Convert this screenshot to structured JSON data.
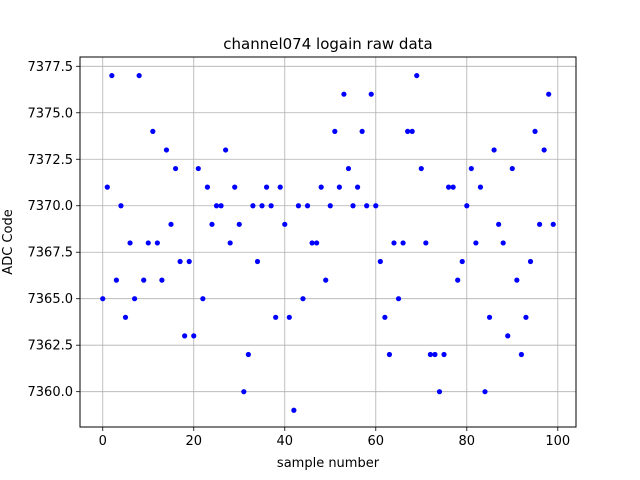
{
  "chart_data": {
    "type": "scatter",
    "title": "channel074 logain raw data",
    "xlabel": "sample number",
    "ylabel": "ADC Code",
    "xlim": [
      -5,
      104
    ],
    "ylim": [
      7358.1,
      7378.0
    ],
    "xticks": [
      0,
      20,
      40,
      60,
      80,
      100
    ],
    "yticks": [
      7360.0,
      7362.5,
      7365.0,
      7367.5,
      7370.0,
      7372.5,
      7375.0,
      7377.5
    ],
    "xtick_labels": [
      "0",
      "20",
      "40",
      "60",
      "80",
      "100"
    ],
    "ytick_labels": [
      "7360.0",
      "7362.5",
      "7365.0",
      "7367.5",
      "7370.0",
      "7372.5",
      "7375.0",
      "7377.5"
    ],
    "grid": true,
    "marker_color": "#0000ff",
    "x": [
      0,
      1,
      2,
      3,
      4,
      5,
      6,
      7,
      8,
      9,
      10,
      11,
      12,
      13,
      14,
      15,
      16,
      17,
      18,
      19,
      20,
      21,
      22,
      23,
      24,
      25,
      26,
      27,
      28,
      29,
      30,
      31,
      32,
      33,
      34,
      35,
      36,
      37,
      38,
      39,
      40,
      41,
      42,
      43,
      44,
      45,
      46,
      47,
      48,
      49,
      50,
      51,
      52,
      53,
      54,
      55,
      56,
      57,
      58,
      59,
      60,
      61,
      62,
      63,
      64,
      65,
      66,
      67,
      68,
      69,
      70,
      71,
      72,
      73,
      74,
      75,
      76,
      77,
      78,
      79,
      80,
      81,
      82,
      83,
      84,
      85,
      86,
      87,
      88,
      89,
      90,
      91,
      92,
      93,
      94,
      95,
      96,
      97,
      98,
      99
    ],
    "y": [
      7365,
      7371,
      7377,
      7366,
      7370,
      7364,
      7368,
      7365,
      7377,
      7366,
      7368,
      7374,
      7368,
      7366,
      7373,
      7369,
      7372,
      7367,
      7363,
      7367,
      7363,
      7372,
      7365,
      7371,
      7369,
      7370,
      7370,
      7373,
      7368,
      7371,
      7369,
      7360,
      7362,
      7370,
      7367,
      7370,
      7371,
      7370,
      7364,
      7371,
      7369,
      7364,
      7359,
      7370,
      7365,
      7370,
      7368,
      7368,
      7371,
      7366,
      7370,
      7374,
      7371,
      7376,
      7372,
      7370,
      7371,
      7374,
      7370,
      7376,
      7370,
      7367,
      7364,
      7362,
      7368,
      7365,
      7368,
      7374,
      7374,
      7377,
      7372,
      7368,
      7362,
      7362,
      7360,
      7362,
      7371,
      7371,
      7366,
      7367,
      7370,
      7372,
      7368,
      7371,
      7360,
      7364,
      7373,
      7369,
      7368,
      7363,
      7372,
      7366,
      7362,
      7364,
      7367,
      7374,
      7369,
      7373,
      7376,
      7369
    ]
  }
}
